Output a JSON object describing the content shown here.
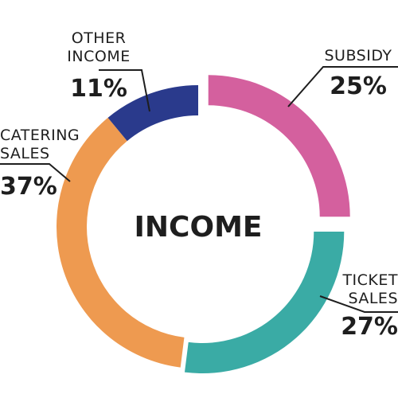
{
  "chart_data": {
    "type": "pie",
    "title": "INCOME",
    "series": [
      {
        "name": "",
        "values": [
          25,
          27,
          37,
          11
        ]
      }
    ],
    "categories": [
      "SUBSIDY",
      "TICKET SALES",
      "CATERING SALES",
      "OTHER INCOME"
    ],
    "labels": [
      {
        "lines": [
          "SUBSIDY"
        ],
        "value": "25%"
      },
      {
        "lines": [
          "TICKET",
          "SALES"
        ],
        "value": "27%"
      },
      {
        "lines": [
          "CATERING",
          "SALES"
        ],
        "value": "37%"
      },
      {
        "lines": [
          "OTHER",
          "INCOME"
        ],
        "value": "11%"
      }
    ],
    "colors": [
      "#d4609e",
      "#3aaba5",
      "#ee9a50",
      "#2a3a8c"
    ],
    "legend": "none",
    "start_angle_deg": 0,
    "direction": "clockwise",
    "donut": true
  }
}
